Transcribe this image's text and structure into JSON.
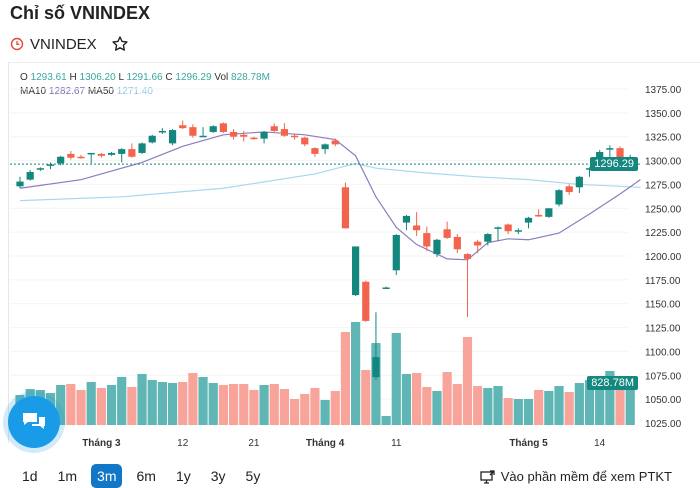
{
  "header": {
    "title": "Chỉ số VNINDEX",
    "symbol": "VNINDEX",
    "clock_icon": "clock-icon",
    "star_icon": "star-outline-icon"
  },
  "legend": {
    "o_label": "O",
    "o": "1293.61",
    "h_label": "H",
    "h": "1306.20",
    "l_label": "L",
    "l": "1291.66",
    "c_label": "C",
    "c": "1296.29",
    "vol_label": "Vol",
    "vol": "828.78M",
    "ma10_label": "MA10",
    "ma10": "1282.67",
    "ma50_label": "MA50",
    "ma50": "1271.40"
  },
  "colors": {
    "up": "#13877e",
    "down": "#f2644d",
    "vol_up": "#5fb6b4",
    "vol_down": "#f8a49a",
    "ma10": "#8a7cc0",
    "ma50": "#a8d8ef",
    "accent": "#1277c6"
  },
  "chart_data": {
    "type": "candlestick",
    "ylim": [
      1025,
      1375
    ],
    "yticks": [
      "1375.00",
      "1350.00",
      "1325.00",
      "1300.00",
      "1275.00",
      "1250.00",
      "1225.00",
      "1200.00",
      "1175.00",
      "1150.00",
      "1125.00",
      "1100.00",
      "1075.00",
      "1050.00",
      "1025.00"
    ],
    "last_price_label": "1296.29",
    "last_price": 1296.29,
    "last_volume_label": "828.78M",
    "xlabels": [
      {
        "text": "Tháng 3",
        "index": 8,
        "bold": true
      },
      {
        "text": "12",
        "index": 16
      },
      {
        "text": "21",
        "index": 23
      },
      {
        "text": "Tháng 4",
        "index": 30,
        "bold": true
      },
      {
        "text": "11",
        "index": 37
      },
      {
        "text": "Tháng 5",
        "index": 50,
        "bold": true
      },
      {
        "text": "14",
        "index": 57
      }
    ],
    "ohlc": [
      [
        1273,
        1283,
        1271,
        1278
      ],
      [
        1280,
        1290,
        1279,
        1288
      ],
      [
        1291,
        1293,
        1289,
        1292
      ],
      [
        1296,
        1298,
        1291,
        1296
      ],
      [
        1297,
        1305,
        1295,
        1304
      ],
      [
        1307,
        1310,
        1301,
        1303
      ],
      [
        1304,
        1306,
        1302,
        1303
      ],
      [
        1307,
        1308,
        1297,
        1308
      ],
      [
        1307,
        1308,
        1303,
        1305
      ],
      [
        1306,
        1309,
        1305,
        1308
      ],
      [
        1307,
        1313,
        1298,
        1312
      ],
      [
        1312,
        1318,
        1303,
        1304
      ],
      [
        1308,
        1319,
        1307,
        1318
      ],
      [
        1319,
        1327,
        1318,
        1326
      ],
      [
        1331,
        1334,
        1328,
        1331
      ],
      [
        1318,
        1333,
        1316,
        1332
      ],
      [
        1337,
        1342,
        1333,
        1334
      ],
      [
        1335,
        1338,
        1324,
        1326
      ],
      [
        1326,
        1335,
        1325,
        1326
      ],
      [
        1330,
        1337,
        1329,
        1336
      ],
      [
        1339,
        1340,
        1329,
        1330
      ],
      [
        1330,
        1333,
        1322,
        1325
      ],
      [
        1327,
        1331,
        1320,
        1325
      ],
      [
        1324,
        1325,
        1322,
        1323
      ],
      [
        1323,
        1331,
        1318,
        1330
      ],
      [
        1336,
        1339,
        1330,
        1331
      ],
      [
        1333,
        1339,
        1325,
        1326
      ],
      [
        1326,
        1328,
        1322,
        1325
      ],
      [
        1324,
        1325,
        1315,
        1317
      ],
      [
        1313,
        1314,
        1304,
        1307
      ],
      [
        1312,
        1318,
        1307,
        1317
      ],
      [
        1321,
        1323,
        1315,
        1317
      ],
      [
        1272,
        1277,
        1229,
        1229
      ],
      [
        1159,
        1210,
        1158,
        1210
      ],
      [
        1173,
        1174,
        1131,
        1132
      ],
      [
        1073,
        1141,
        1070,
        1094
      ],
      [
        1167,
        1168,
        1166,
        1167
      ],
      [
        1185,
        1223,
        1180,
        1222
      ],
      [
        1235,
        1243,
        1227,
        1242
      ],
      [
        1232,
        1246,
        1221,
        1227
      ],
      [
        1224,
        1231,
        1205,
        1210
      ],
      [
        1202,
        1218,
        1199,
        1217
      ],
      [
        1228,
        1236,
        1218,
        1219
      ],
      [
        1220,
        1223,
        1203,
        1207
      ],
      [
        1202,
        1203,
        1136,
        1197
      ],
      [
        1215,
        1217,
        1203,
        1211
      ],
      [
        1215,
        1224,
        1211,
        1223
      ],
      [
        1229,
        1231,
        1216,
        1230
      ],
      [
        1233,
        1234,
        1223,
        1226
      ],
      [
        1227,
        1229,
        1223,
        1227
      ],
      [
        1235,
        1241,
        1229,
        1240
      ],
      [
        1243,
        1249,
        1241,
        1242
      ],
      [
        1241,
        1250,
        1240,
        1250
      ],
      [
        1254,
        1270,
        1252,
        1269
      ],
      [
        1273,
        1275,
        1264,
        1267
      ],
      [
        1272,
        1284,
        1266,
        1283
      ],
      [
        1291,
        1293,
        1283,
        1292
      ],
      [
        1295,
        1311,
        1294,
        1309
      ],
      [
        1313,
        1316,
        1303,
        1313
      ],
      [
        1313,
        1315,
        1300,
        1302
      ],
      [
        1293,
        1306,
        1292,
        1296
      ]
    ],
    "volume_millions": [
      591,
      709,
      690,
      630,
      788,
      808,
      690,
      847,
      729,
      788,
      946,
      749,
      1005,
      887,
      847,
      827,
      847,
      1024,
      946,
      827,
      788,
      808,
      808,
      690,
      788,
      808,
      709,
      512,
      611,
      729,
      493,
      670,
      1832,
      2029,
      1084,
      1615,
      177,
      1812,
      1005,
      1024,
      749,
      670,
      1044,
      808,
      1734,
      768,
      729,
      768,
      532,
      512,
      512,
      690,
      670,
      768,
      650,
      827,
      887,
      926,
      1064,
      847,
      828.78
    ],
    "ma10": [
      [
        0,
        1271
      ],
      [
        6,
        1280
      ],
      [
        12,
        1298
      ],
      [
        16,
        1315
      ],
      [
        20,
        1327
      ],
      [
        24,
        1330
      ],
      [
        28,
        1327
      ],
      [
        31,
        1322
      ],
      [
        33,
        1305
      ],
      [
        35,
        1262
      ],
      [
        37,
        1230
      ],
      [
        39,
        1212
      ],
      [
        42,
        1197
      ],
      [
        44,
        1196
      ],
      [
        46,
        1214
      ],
      [
        48,
        1218
      ],
      [
        50,
        1217
      ],
      [
        53,
        1224
      ],
      [
        56,
        1244
      ],
      [
        59,
        1265
      ],
      [
        61,
        1280
      ]
    ],
    "ma50": [
      [
        0,
        1258
      ],
      [
        10,
        1262
      ],
      [
        20,
        1271
      ],
      [
        29,
        1286
      ],
      [
        33,
        1297
      ],
      [
        35,
        1292
      ],
      [
        40,
        1287
      ],
      [
        45,
        1283
      ],
      [
        50,
        1280
      ],
      [
        55,
        1275
      ],
      [
        61,
        1272
      ]
    ]
  },
  "xaxis": {},
  "ranges": [
    {
      "label": "1d"
    },
    {
      "label": "1m"
    },
    {
      "label": "3m",
      "active": true
    },
    {
      "label": "6m"
    },
    {
      "label": "1y"
    },
    {
      "label": "3y"
    },
    {
      "label": "5y"
    }
  ],
  "ptkt_link": "Vào phần mềm để xem PTKT"
}
